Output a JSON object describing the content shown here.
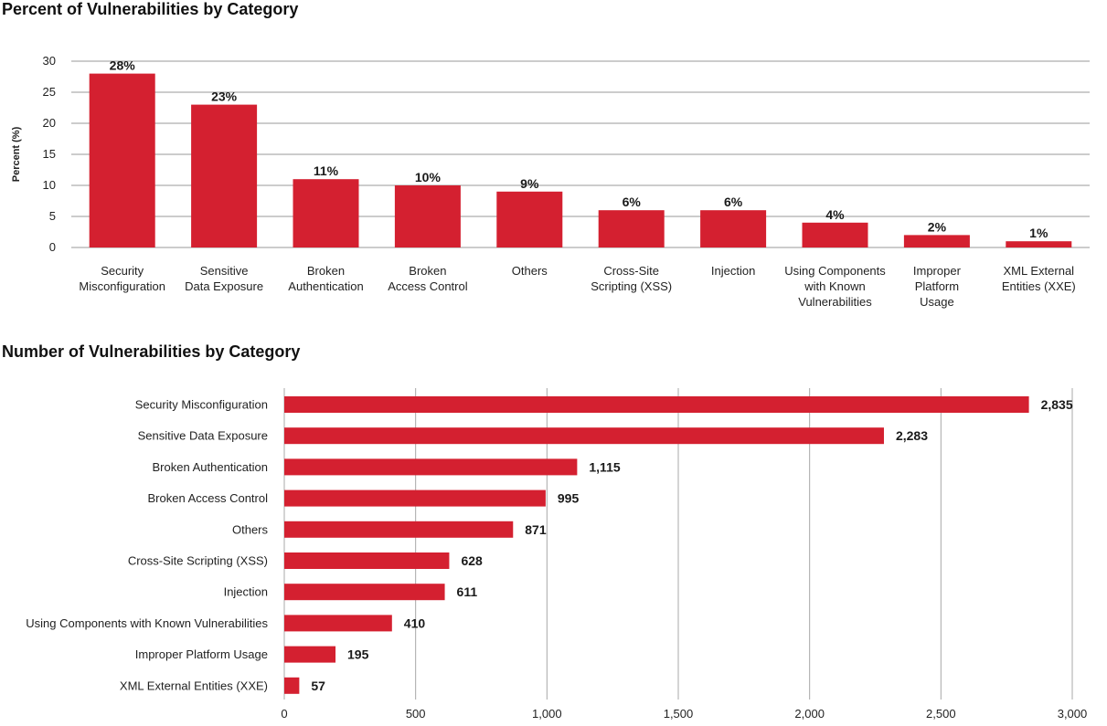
{
  "chart_data": [
    {
      "type": "bar",
      "orientation": "vertical",
      "title": "Percent of Vulnerabilities by Category",
      "ylabel": "Percent (%)",
      "xlabel": "",
      "ylim": [
        0,
        30
      ],
      "yticks": [
        0,
        5,
        10,
        15,
        20,
        25,
        30
      ],
      "grid": true,
      "bar_color": "#d42030",
      "categories": [
        [
          "Security",
          "Misconfiguration"
        ],
        [
          "Sensitive",
          "Data Exposure"
        ],
        [
          "Broken",
          "Authentication"
        ],
        [
          "Broken",
          "Access Control"
        ],
        [
          "Others"
        ],
        [
          "Cross-Site",
          "Scripting (XSS)"
        ],
        [
          "Injection"
        ],
        [
          "Using Components",
          "with Known",
          "Vulnerabilities"
        ],
        [
          "Improper",
          "Platform",
          "Usage"
        ],
        [
          "XML External",
          "Entities (XXE)"
        ]
      ],
      "values": [
        28,
        23,
        11,
        10,
        9,
        6,
        6,
        4,
        2,
        1
      ],
      "value_labels": [
        "28%",
        "23%",
        "11%",
        "10%",
        "9%",
        "6%",
        "6%",
        "4%",
        "2%",
        "1%"
      ]
    },
    {
      "type": "bar",
      "orientation": "horizontal",
      "title": "Number of Vulnerabilities by Category",
      "xlabel": "",
      "ylabel": "",
      "xlim": [
        0,
        3000
      ],
      "xticks": [
        0,
        500,
        1000,
        1500,
        2000,
        2500,
        3000
      ],
      "xtick_labels": [
        "0",
        "500",
        "1,000",
        "1,500",
        "2,000",
        "2,500",
        "3,000"
      ],
      "grid": true,
      "bar_color": "#d42030",
      "categories": [
        "Security Misconfiguration",
        "Sensitive Data Exposure",
        "Broken Authentication",
        "Broken Access Control",
        "Others",
        "Cross-Site Scripting (XSS)",
        "Injection",
        "Using Components with Known Vulnerabilities",
        "Improper Platform Usage",
        "XML External Entities (XXE)"
      ],
      "values": [
        2835,
        2283,
        1115,
        995,
        871,
        628,
        611,
        410,
        195,
        57
      ],
      "value_labels": [
        "2,835",
        "2,283",
        "1,115",
        "995",
        "871",
        "628",
        "611",
        "410",
        "195",
        "57"
      ]
    }
  ]
}
